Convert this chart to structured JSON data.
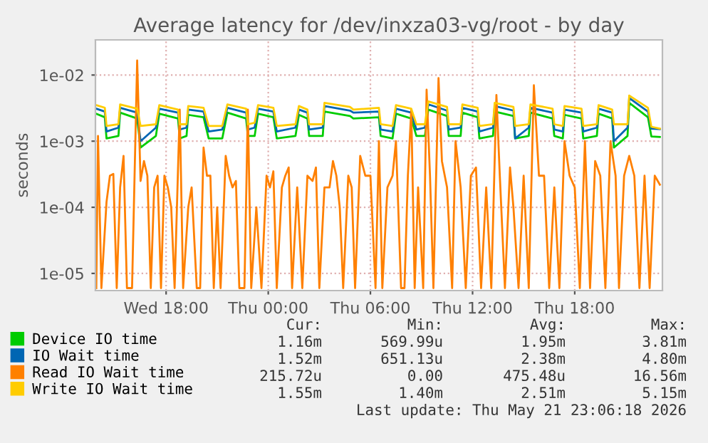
{
  "chart_data": {
    "type": "line",
    "title": "Average latency for /dev/inxza03-vg/root - by day",
    "ylabel": "seconds",
    "log": "y",
    "grid": true,
    "legend": "bottom",
    "marker": "none",
    "line_style": "solid",
    "xlim": [
      "2026-05-20T13:51",
      "2026-05-21T23:09"
    ],
    "ylim": [
      5.5e-06,
      0.034
    ],
    "xticks": [
      {
        "value": "2026-05-20T18:00",
        "label": "Wed 18:00"
      },
      {
        "value": "2026-05-21T00:00",
        "label": "Thu 00:00"
      },
      {
        "value": "2026-05-21T06:00",
        "label": "Thu 06:00"
      },
      {
        "value": "2026-05-21T12:00",
        "label": "Thu 12:00"
      },
      {
        "value": "2026-05-21T18:00",
        "label": "Thu 18:00"
      }
    ],
    "yticks": [
      {
        "value": 1e-05,
        "label": "1e-05"
      },
      {
        "value": 0.0001,
        "label": "1e-04"
      },
      {
        "value": 0.001,
        "label": "1e-03"
      },
      {
        "value": 0.01,
        "label": "1e-02"
      }
    ],
    "x": [
      "2026-05-20T13:54",
      "2026-05-20T14:24",
      "2026-05-20T14:30",
      "2026-05-20T15:12",
      "2026-05-20T15:18",
      "2026-05-20T16:18",
      "2026-05-20T16:30",
      "2026-05-20T17:24",
      "2026-05-20T17:36",
      "2026-05-20T18:42",
      "2026-05-20T18:48",
      "2026-05-20T19:12",
      "2026-05-20T19:18",
      "2026-05-20T20:12",
      "2026-05-20T20:30",
      "2026-05-20T21:18",
      "2026-05-20T21:36",
      "2026-05-20T22:42",
      "2026-05-20T22:48",
      "2026-05-20T23:12",
      "2026-05-20T23:24",
      "2026-05-21T00:18",
      "2026-05-21T00:30",
      "2026-05-21T01:36",
      "2026-05-21T01:48",
      "2026-05-21T02:18",
      "2026-05-21T02:24",
      "2026-05-21T03:12",
      "2026-05-21T03:18",
      "2026-05-21T04:48",
      "2026-05-21T05:00",
      "2026-05-21T06:30",
      "2026-05-21T06:36",
      "2026-05-21T07:18",
      "2026-05-21T07:30",
      "2026-05-21T08:24",
      "2026-05-21T08:42",
      "2026-05-21T09:12",
      "2026-05-21T09:24",
      "2026-05-21T10:30",
      "2026-05-21T10:36",
      "2026-05-21T11:18",
      "2026-05-21T11:24",
      "2026-05-21T12:18",
      "2026-05-21T12:24",
      "2026-05-21T13:12",
      "2026-05-21T13:18",
      "2026-05-21T14:24",
      "2026-05-21T14:30",
      "2026-05-21T15:18",
      "2026-05-21T15:24",
      "2026-05-21T16:42",
      "2026-05-21T16:48",
      "2026-05-21T17:18",
      "2026-05-21T17:24",
      "2026-05-21T18:24",
      "2026-05-21T18:30",
      "2026-05-21T19:18",
      "2026-05-21T19:24",
      "2026-05-21T20:12",
      "2026-05-21T20:18",
      "2026-05-21T21:06",
      "2026-05-21T21:12",
      "2026-05-21T22:18",
      "2026-05-21T22:30",
      "2026-05-21T23:00"
    ],
    "series": [
      {
        "name": "Device IO time",
        "color": "#00cc00",
        "values": [
          0.0026,
          0.0023,
          0.0011,
          0.0012,
          0.0027,
          0.0022,
          0.0008,
          0.0012,
          0.0026,
          0.0022,
          0.0011,
          0.0012,
          0.0025,
          0.0023,
          0.0011,
          0.0011,
          0.0027,
          0.0022,
          0.0012,
          0.0012,
          0.0026,
          0.0023,
          0.0011,
          0.0012,
          0.0025,
          0.0022,
          0.0012,
          0.0012,
          0.0028,
          0.0024,
          0.0022,
          0.0023,
          0.0012,
          0.0011,
          0.0026,
          0.0022,
          0.0012,
          0.0012,
          0.003,
          0.0024,
          0.0012,
          0.0012,
          0.0027,
          0.0023,
          0.0011,
          0.0012,
          0.0028,
          0.0024,
          0.0011,
          0.0012,
          0.0027,
          0.0022,
          0.0012,
          0.0011,
          0.0025,
          0.0022,
          0.0011,
          0.0012,
          0.0026,
          0.0022,
          0.0008,
          0.0012,
          0.0038,
          0.0023,
          0.00118,
          0.00116
        ]
      },
      {
        "name": "IO Wait time",
        "color": "#0066b3",
        "values": [
          0.0031,
          0.0028,
          0.0014,
          0.0016,
          0.0032,
          0.0027,
          0.001,
          0.0016,
          0.0031,
          0.0027,
          0.0015,
          0.0016,
          0.003,
          0.0028,
          0.0014,
          0.0015,
          0.0032,
          0.0027,
          0.0015,
          0.0016,
          0.0031,
          0.0028,
          0.0014,
          0.0016,
          0.003,
          0.0027,
          0.0015,
          0.0016,
          0.0034,
          0.0029,
          0.0027,
          0.0028,
          0.0015,
          0.0014,
          0.0031,
          0.0027,
          0.0015,
          0.0016,
          0.0036,
          0.0029,
          0.0015,
          0.0016,
          0.0032,
          0.0028,
          0.0014,
          0.0016,
          0.0034,
          0.0029,
          0.0011,
          0.0016,
          0.0032,
          0.0027,
          0.0015,
          0.0014,
          0.003,
          0.0027,
          0.0014,
          0.0016,
          0.0031,
          0.0027,
          0.001,
          0.0016,
          0.0045,
          0.0028,
          0.00155,
          0.00152
        ]
      },
      {
        "name": "Read IO Wait time",
        "color": "#ff8000",
        "x": [
          "2026-05-20T13:54",
          "2026-05-20T14:00",
          "2026-05-20T14:12",
          "2026-05-20T14:30",
          "2026-05-20T14:42",
          "2026-05-20T14:54",
          "2026-05-20T15:06",
          "2026-05-20T15:18",
          "2026-05-20T15:30",
          "2026-05-20T15:42",
          "2026-05-20T16:00",
          "2026-05-20T16:18",
          "2026-05-20T16:30",
          "2026-05-20T16:42",
          "2026-05-20T16:54",
          "2026-05-20T17:06",
          "2026-05-20T17:18",
          "2026-05-20T17:30",
          "2026-05-20T17:42",
          "2026-05-20T17:54",
          "2026-05-20T18:06",
          "2026-05-20T18:18",
          "2026-05-20T18:30",
          "2026-05-20T18:48",
          "2026-05-20T19:00",
          "2026-05-20T19:18",
          "2026-05-20T19:30",
          "2026-05-20T19:48",
          "2026-05-20T20:00",
          "2026-05-20T20:12",
          "2026-05-20T20:24",
          "2026-05-20T20:36",
          "2026-05-20T20:48",
          "2026-05-20T21:00",
          "2026-05-20T21:12",
          "2026-05-20T21:30",
          "2026-05-20T21:42",
          "2026-05-20T21:54",
          "2026-05-20T22:06",
          "2026-05-20T22:18",
          "2026-05-20T22:36",
          "2026-05-20T22:48",
          "2026-05-20T23:00",
          "2026-05-20T23:18",
          "2026-05-20T23:36",
          "2026-05-20T23:54",
          "2026-05-21T00:06",
          "2026-05-21T00:18",
          "2026-05-21T00:30",
          "2026-05-21T00:48",
          "2026-05-21T01:00",
          "2026-05-21T01:12",
          "2026-05-21T01:24",
          "2026-05-21T01:42",
          "2026-05-21T02:00",
          "2026-05-21T02:18",
          "2026-05-21T02:36",
          "2026-05-21T02:48",
          "2026-05-21T03:00",
          "2026-05-21T03:18",
          "2026-05-21T03:36",
          "2026-05-21T03:48",
          "2026-05-21T04:00",
          "2026-05-21T04:12",
          "2026-05-21T04:24",
          "2026-05-21T04:42",
          "2026-05-21T04:54",
          "2026-05-21T05:06",
          "2026-05-21T05:24",
          "2026-05-21T05:42",
          "2026-05-21T06:00",
          "2026-05-21T06:18",
          "2026-05-21T06:30",
          "2026-05-21T06:42",
          "2026-05-21T07:00",
          "2026-05-21T07:18",
          "2026-05-21T07:30",
          "2026-05-21T07:48",
          "2026-05-21T08:00",
          "2026-05-21T08:12",
          "2026-05-21T08:24",
          "2026-05-21T08:36",
          "2026-05-21T08:48",
          "2026-05-21T09:06",
          "2026-05-21T09:18",
          "2026-05-21T09:30",
          "2026-05-21T09:42",
          "2026-05-21T10:00",
          "2026-05-21T10:12",
          "2026-05-21T10:30",
          "2026-05-21T10:48",
          "2026-05-21T11:00",
          "2026-05-21T11:18",
          "2026-05-21T11:36",
          "2026-05-21T11:54",
          "2026-05-21T12:12",
          "2026-05-21T12:30",
          "2026-05-21T12:48",
          "2026-05-21T13:06",
          "2026-05-21T13:24",
          "2026-05-21T13:36",
          "2026-05-21T13:54",
          "2026-05-21T14:12",
          "2026-05-21T14:24",
          "2026-05-21T14:42",
          "2026-05-21T15:00",
          "2026-05-21T15:18",
          "2026-05-21T15:36",
          "2026-05-21T15:54",
          "2026-05-21T16:12",
          "2026-05-21T16:30",
          "2026-05-21T16:48",
          "2026-05-21T17:06",
          "2026-05-21T17:24",
          "2026-05-21T17:42",
          "2026-05-21T18:00",
          "2026-05-21T18:18",
          "2026-05-21T18:36",
          "2026-05-21T18:54",
          "2026-05-21T19:12",
          "2026-05-21T19:30",
          "2026-05-21T19:48",
          "2026-05-21T20:06",
          "2026-05-21T20:24",
          "2026-05-21T20:36",
          "2026-05-21T20:54",
          "2026-05-21T21:12",
          "2026-05-21T21:30",
          "2026-05-21T21:48",
          "2026-05-21T22:06",
          "2026-05-21T22:24",
          "2026-05-21T22:42",
          "2026-05-21T23:00"
        ],
        "values": [
          6e-06,
          0.0012,
          6e-06,
          0.00012,
          0.0003,
          0.00032,
          6e-06,
          0.0002,
          0.0006,
          6e-06,
          6e-06,
          0.0166,
          0.00025,
          0.0005,
          0.0003,
          6e-06,
          0.0002,
          0.0003,
          6e-06,
          0.0003,
          0.0002,
          0.0001,
          6e-06,
          0.003,
          6e-06,
          0.0001,
          0.0002,
          6e-06,
          6e-06,
          0.0008,
          0.0003,
          0.0003,
          6e-06,
          0.0001,
          6e-06,
          0.0006,
          0.0003,
          0.0002,
          0.00025,
          6e-06,
          6e-06,
          0.003,
          6e-06,
          0.0001,
          6e-06,
          0.0003,
          0.0002,
          0.00035,
          6e-06,
          0.0002,
          0.0003,
          0.0004,
          6e-06,
          0.0002,
          6e-06,
          0.0003,
          0.00025,
          0.0004,
          6e-06,
          0.0002,
          0.0002,
          0.0005,
          0.0003,
          0.0001,
          6e-06,
          0.0003,
          0.0002,
          6e-06,
          0.0006,
          0.0003,
          0.0003,
          6e-06,
          0.001,
          6e-06,
          0.0002,
          0.0003,
          0.001,
          6e-06,
          6e-06,
          0.0003,
          0.003,
          6e-06,
          0.0002,
          6e-06,
          0.006,
          0.0003,
          6e-06,
          0.009,
          0.0005,
          0.0002,
          6e-06,
          0.001,
          0.0002,
          6e-06,
          0.0003,
          0.0004,
          6e-06,
          0.0002,
          6e-06,
          0.005,
          0.0003,
          6e-06,
          0.0004,
          0.0001,
          6e-06,
          0.0003,
          6e-06,
          0.007,
          0.0003,
          0.0003,
          6e-06,
          0.0002,
          6e-06,
          0.001,
          0.0003,
          0.0002,
          6e-06,
          0.001,
          6e-06,
          0.0005,
          0.0003,
          6e-06,
          0.001,
          0.0003,
          6e-06,
          0.0003,
          0.0006,
          0.0003,
          6e-06,
          0.0003,
          6e-06,
          0.0003,
          0.00022
        ]
      },
      {
        "name": "Write IO Wait time",
        "color": "#ffcc00",
        "values": [
          0.0035,
          0.0032,
          0.0017,
          0.0018,
          0.0036,
          0.0031,
          0.0017,
          0.0018,
          0.0035,
          0.003,
          0.0018,
          0.0018,
          0.0034,
          0.0032,
          0.0017,
          0.0017,
          0.0036,
          0.0031,
          0.0018,
          0.0019,
          0.0035,
          0.0032,
          0.0017,
          0.0018,
          0.0034,
          0.003,
          0.0018,
          0.0018,
          0.0038,
          0.0033,
          0.003,
          0.0032,
          0.0018,
          0.0017,
          0.0035,
          0.0031,
          0.0018,
          0.0018,
          0.004,
          0.0033,
          0.0018,
          0.0018,
          0.0036,
          0.0032,
          0.0017,
          0.0018,
          0.0038,
          0.0033,
          0.0017,
          0.0018,
          0.0036,
          0.0031,
          0.0018,
          0.0017,
          0.0034,
          0.0031,
          0.0017,
          0.0018,
          0.0035,
          0.003,
          0.0018,
          0.0018,
          0.0049,
          0.0032,
          0.00165,
          0.00155
        ]
      }
    ],
    "annotations": [
      "Cur:",
      "Min:",
      "Avg:",
      "Max:",
      "1.16m",
      "569.99u",
      "1.95m",
      "3.81m",
      "1.52m",
      "651.13u",
      "2.38m",
      "4.80m",
      "215.72u",
      "0.00",
      "475.48u",
      "16.56m",
      "1.55m",
      "1.40m",
      "2.51m",
      "5.15m",
      "Last update: Thu May 21 23:06:18 2026"
    ]
  }
}
